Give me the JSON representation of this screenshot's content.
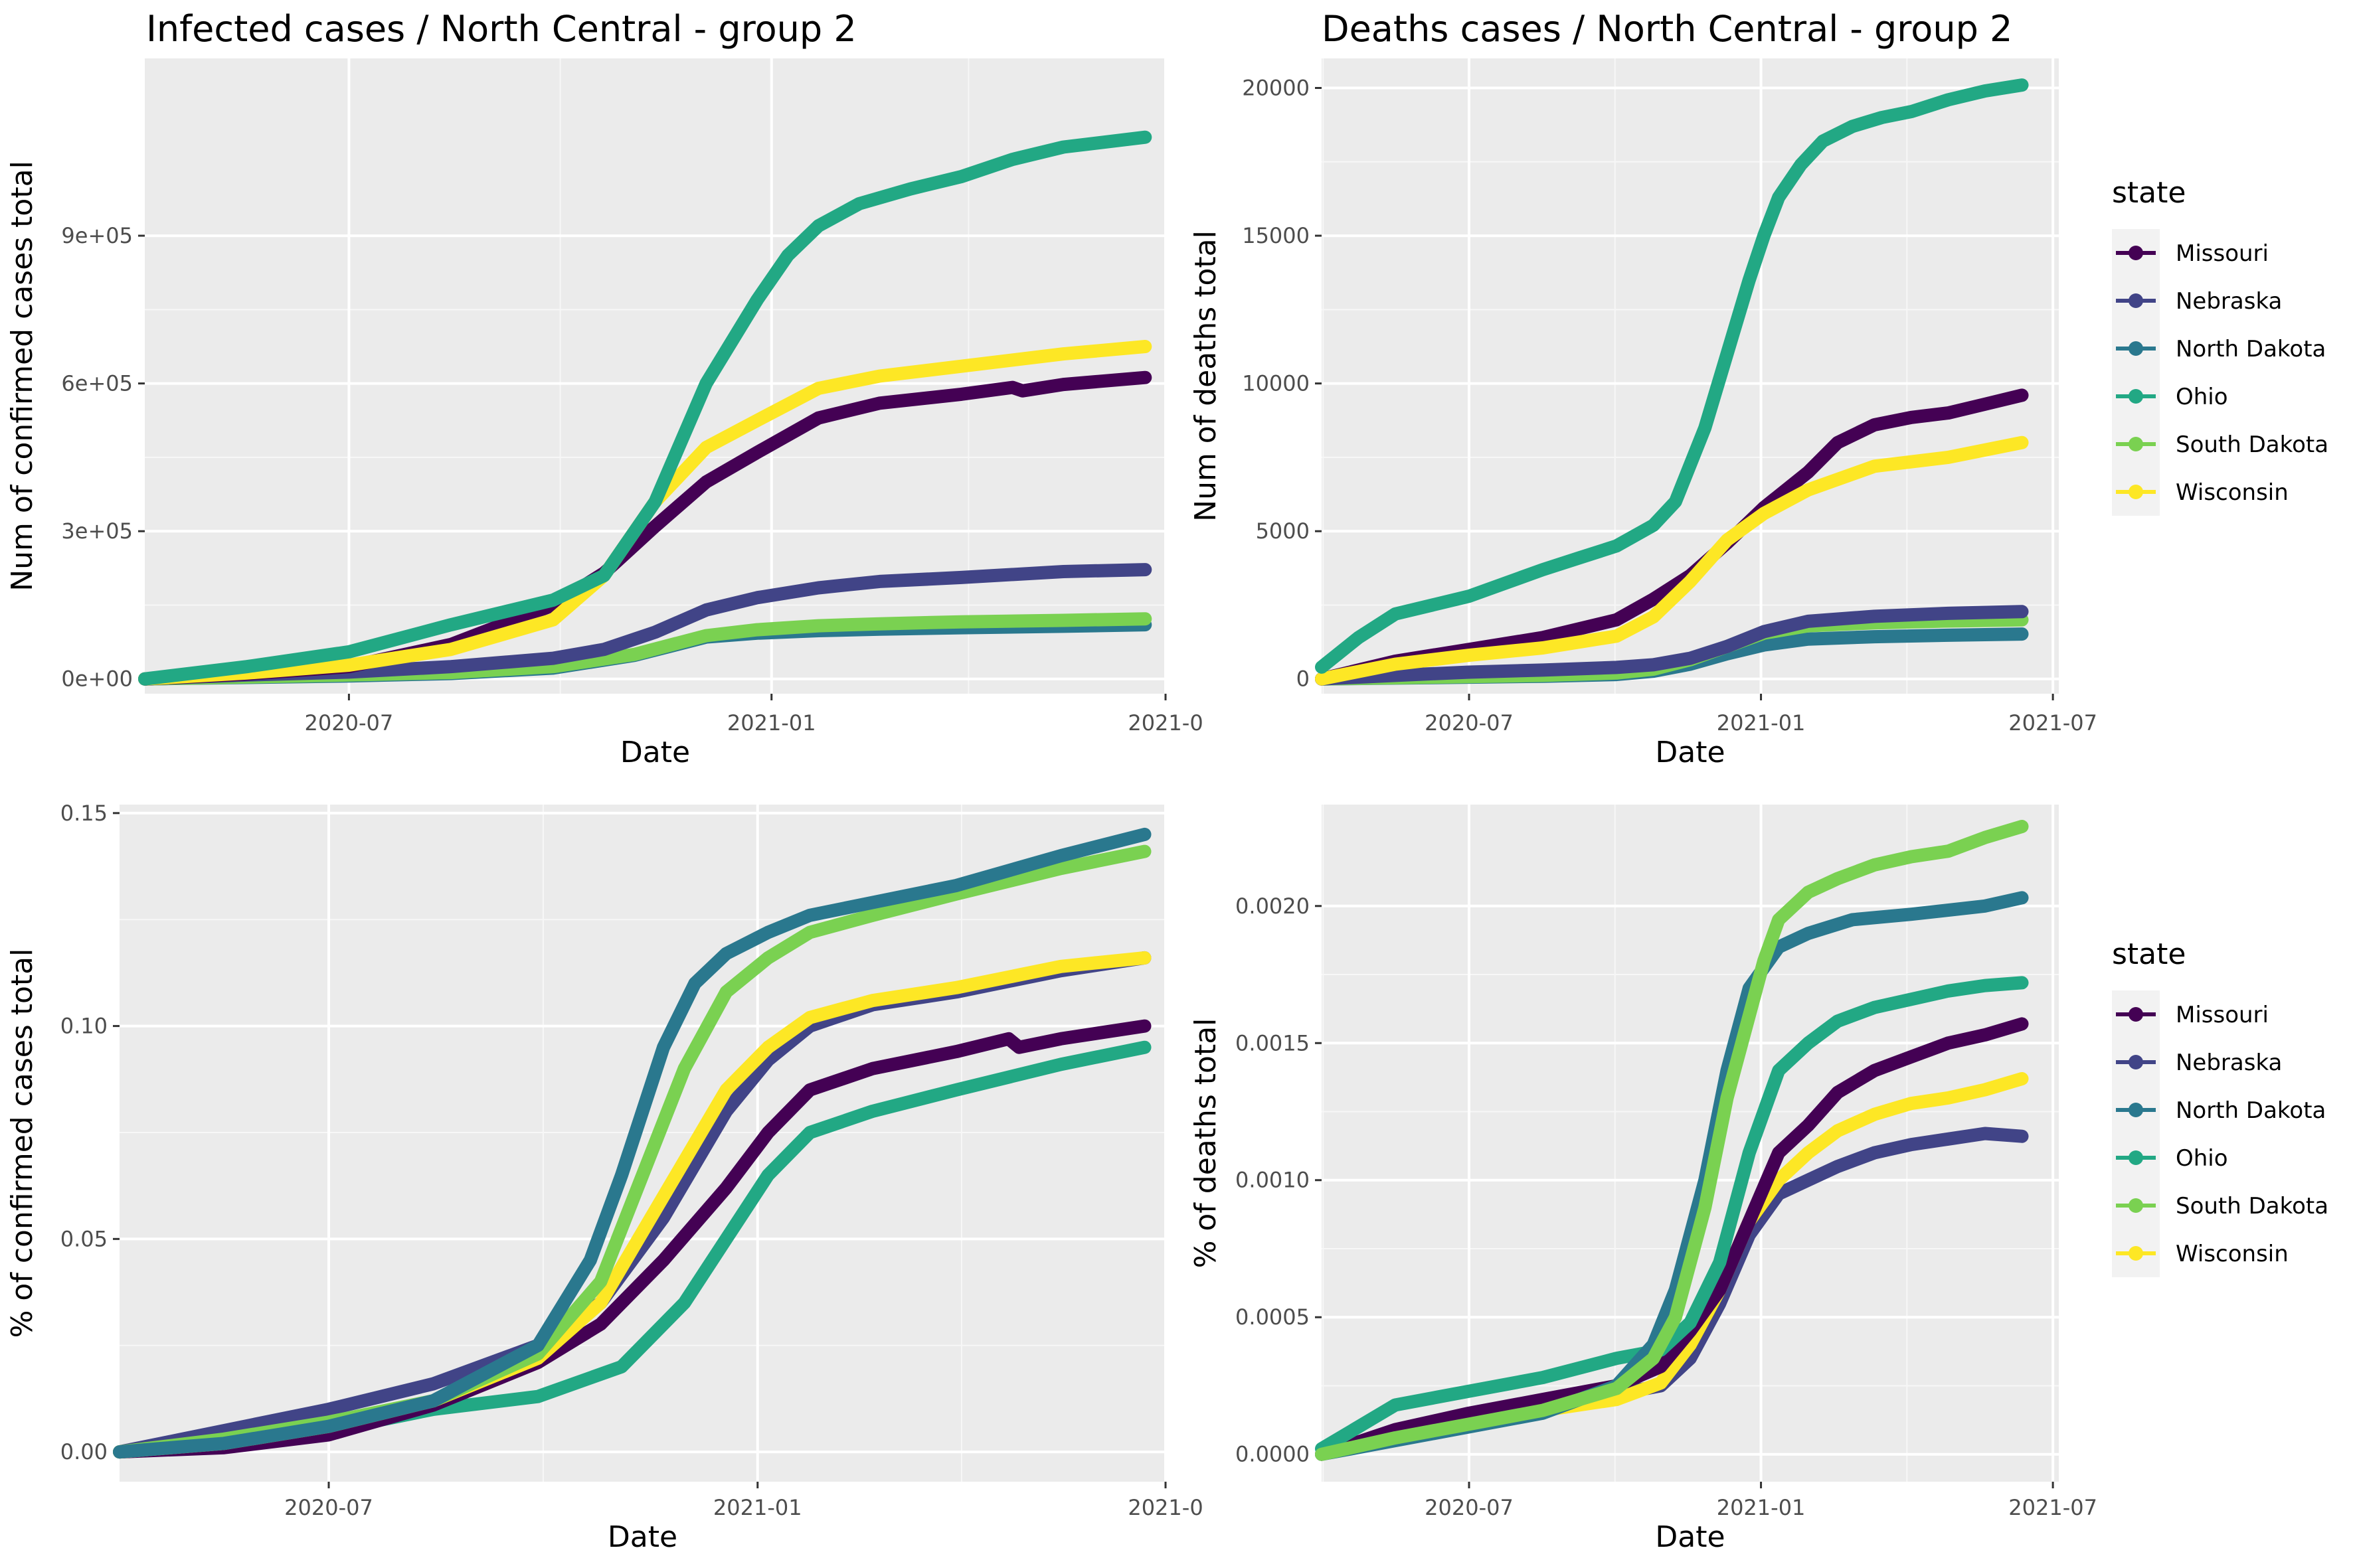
{
  "chart_data": [
    {
      "type": "line",
      "title": "Infected cases / North Central - group 2",
      "xlabel": "Date",
      "ylabel": "Num of confirmed cases total",
      "x_ticks": [
        "2020-07",
        "2021-01",
        "2021-0"
      ],
      "y_ticks": [
        "0e+00",
        "3e+05",
        "6e+05",
        "9e+05"
      ],
      "y_tick_values": [
        0,
        300000,
        600000,
        900000
      ],
      "xlim": [
        0,
        100
      ],
      "ylim": [
        -30000,
        1260000
      ],
      "x_tick_positions": [
        20.0,
        61.4,
        100.0
      ],
      "legend": false,
      "series": [
        {
          "name": "North Dakota",
          "x": [
            0,
            10,
            20,
            30,
            40,
            48,
            55,
            60,
            66,
            72,
            80,
            90,
            98
          ],
          "values": [
            0,
            3000,
            6000,
            11000,
            22000,
            48000,
            85000,
            93000,
            98000,
            101000,
            104000,
            107000,
            110000
          ]
        },
        {
          "name": "South Dakota",
          "x": [
            0,
            10,
            20,
            30,
            40,
            48,
            55,
            60,
            66,
            72,
            80,
            90,
            98
          ],
          "values": [
            0,
            4000,
            8000,
            13000,
            25000,
            50000,
            88000,
            100000,
            108000,
            112000,
            116000,
            119000,
            122000
          ]
        },
        {
          "name": "Nebraska",
          "x": [
            0,
            10,
            20,
            30,
            40,
            45,
            50,
            55,
            60,
            66,
            72,
            80,
            90,
            98
          ],
          "values": [
            0,
            8000,
            14000,
            25000,
            42000,
            60000,
            95000,
            140000,
            165000,
            185000,
            198000,
            206000,
            218000,
            222000
          ]
        },
        {
          "name": "Missouri",
          "x": [
            0,
            10,
            20,
            30,
            40,
            45,
            50,
            55,
            60,
            66,
            72,
            80,
            85,
            86,
            90,
            98
          ],
          "values": [
            0,
            10000,
            25000,
            70000,
            150000,
            215000,
            310000,
            400000,
            460000,
            530000,
            560000,
            578000,
            592000,
            585000,
            598000,
            612000
          ]
        },
        {
          "name": "Wisconsin",
          "x": [
            0,
            10,
            20,
            30,
            40,
            45,
            50,
            55,
            60,
            66,
            72,
            80,
            90,
            98
          ],
          "values": [
            0,
            12000,
            28000,
            60000,
            120000,
            210000,
            360000,
            470000,
            525000,
            590000,
            615000,
            635000,
            660000,
            675000
          ]
        },
        {
          "name": "Ohio",
          "x": [
            0,
            10,
            20,
            30,
            40,
            45,
            50,
            55,
            60,
            63,
            66,
            70,
            75,
            80,
            85,
            90,
            98
          ],
          "values": [
            0,
            25000,
            55000,
            110000,
            160000,
            210000,
            360000,
            600000,
            770000,
            860000,
            920000,
            965000,
            995000,
            1020000,
            1055000,
            1080000,
            1100000
          ]
        }
      ]
    },
    {
      "type": "line",
      "title": "Deaths cases / North Central - group 2",
      "xlabel": "Date",
      "ylabel": "Num of deaths total",
      "x_ticks": [
        "2020-07",
        "2021-01",
        "2021-07"
      ],
      "y_ticks": [
        "0",
        "5000",
        "10000",
        "15000",
        "20000"
      ],
      "y_tick_values": [
        0,
        5000,
        10000,
        15000,
        20000
      ],
      "xlim": [
        0,
        100
      ],
      "ylim": [
        -500,
        21000
      ],
      "x_tick_positions": [
        20.0,
        59.6,
        99.2
      ],
      "legend": true,
      "series": [
        {
          "name": "North Dakota",
          "x": [
            0,
            10,
            20,
            30,
            40,
            45,
            50,
            55,
            60,
            66,
            75,
            85,
            95
          ],
          "values": [
            0,
            30,
            60,
            90,
            150,
            260,
            500,
            850,
            1150,
            1350,
            1430,
            1480,
            1520
          ]
        },
        {
          "name": "South Dakota",
          "x": [
            0,
            10,
            20,
            30,
            40,
            45,
            50,
            55,
            60,
            66,
            75,
            85,
            95
          ],
          "values": [
            0,
            40,
            80,
            120,
            200,
            330,
            650,
            1100,
            1550,
            1800,
            1900,
            1960,
            2000
          ]
        },
        {
          "name": "Nebraska",
          "x": [
            0,
            10,
            20,
            30,
            40,
            45,
            50,
            55,
            60,
            66,
            75,
            85,
            95
          ],
          "values": [
            0,
            120,
            230,
            300,
            390,
            480,
            700,
            1100,
            1600,
            1950,
            2120,
            2220,
            2280
          ]
        },
        {
          "name": "Missouri",
          "x": [
            0,
            10,
            20,
            30,
            40,
            45,
            50,
            55,
            60,
            66,
            70,
            75,
            80,
            85,
            90,
            95
          ],
          "values": [
            0,
            600,
            1000,
            1400,
            2000,
            2700,
            3500,
            4600,
            5800,
            7000,
            8000,
            8600,
            8850,
            9000,
            9300,
            9600
          ]
        },
        {
          "name": "Wisconsin",
          "x": [
            0,
            10,
            20,
            30,
            40,
            45,
            50,
            55,
            60,
            66,
            75,
            85,
            95
          ],
          "values": [
            0,
            500,
            800,
            1050,
            1450,
            2100,
            3300,
            4700,
            5600,
            6400,
            7200,
            7500,
            8000
          ]
        },
        {
          "name": "Ohio",
          "x": [
            0,
            5,
            10,
            15,
            20,
            30,
            35,
            40,
            45,
            48,
            52,
            55,
            58,
            60,
            62,
            65,
            68,
            72,
            76,
            80,
            85,
            90,
            95
          ],
          "values": [
            400,
            1400,
            2200,
            2500,
            2800,
            3700,
            4100,
            4500,
            5200,
            6000,
            8500,
            11000,
            13500,
            15000,
            16300,
            17400,
            18200,
            18700,
            19000,
            19200,
            19600,
            19900,
            20100
          ]
        }
      ]
    },
    {
      "type": "line",
      "title": "",
      "xlabel": "Date",
      "ylabel": "% of confirmed cases total",
      "x_ticks": [
        "2020-07",
        "2021-01",
        "2021-0"
      ],
      "y_ticks": [
        "0.00",
        "0.05",
        "0.10",
        "0.15"
      ],
      "y_tick_values": [
        0,
        0.05,
        0.1,
        0.15
      ],
      "xlim": [
        0,
        100
      ],
      "ylim": [
        -0.007,
        0.152
      ],
      "x_tick_positions": [
        20.0,
        61.0,
        100.0
      ],
      "legend": false,
      "series": [
        {
          "name": "Ohio",
          "x": [
            0,
            10,
            20,
            30,
            40,
            48,
            54,
            58,
            62,
            66,
            72,
            80,
            90,
            98
          ],
          "values": [
            0,
            0.002,
            0.005,
            0.01,
            0.013,
            0.02,
            0.035,
            0.05,
            0.065,
            0.075,
            0.08,
            0.085,
            0.091,
            0.095
          ]
        },
        {
          "name": "Missouri",
          "x": [
            0,
            10,
            20,
            30,
            40,
            46,
            52,
            58,
            62,
            66,
            72,
            80,
            85,
            86,
            90,
            98
          ],
          "values": [
            0,
            0.001,
            0.004,
            0.011,
            0.021,
            0.03,
            0.045,
            0.062,
            0.075,
            0.085,
            0.09,
            0.094,
            0.097,
            0.095,
            0.097,
            0.1
          ]
        },
        {
          "name": "Nebraska",
          "x": [
            0,
            10,
            20,
            30,
            40,
            46,
            52,
            58,
            62,
            66,
            72,
            80,
            90,
            98
          ],
          "values": [
            0,
            0.005,
            0.01,
            0.016,
            0.025,
            0.035,
            0.055,
            0.08,
            0.092,
            0.1,
            0.105,
            0.108,
            0.113,
            0.116
          ]
        },
        {
          "name": "Wisconsin",
          "x": [
            0,
            10,
            20,
            30,
            40,
            46,
            52,
            58,
            62,
            66,
            72,
            80,
            90,
            98
          ],
          "values": [
            0,
            0.002,
            0.006,
            0.012,
            0.022,
            0.035,
            0.06,
            0.085,
            0.095,
            0.102,
            0.106,
            0.109,
            0.114,
            0.116
          ]
        },
        {
          "name": "South Dakota",
          "x": [
            0,
            10,
            20,
            30,
            40,
            46,
            50,
            54,
            58,
            62,
            66,
            72,
            80,
            90,
            98
          ],
          "values": [
            0,
            0.003,
            0.007,
            0.012,
            0.023,
            0.04,
            0.065,
            0.09,
            0.108,
            0.116,
            0.122,
            0.126,
            0.131,
            0.137,
            0.141
          ]
        },
        {
          "name": "North Dakota",
          "x": [
            0,
            10,
            20,
            30,
            40,
            45,
            48,
            52,
            55,
            58,
            62,
            66,
            72,
            80,
            90,
            98
          ],
          "values": [
            0,
            0.002,
            0.006,
            0.012,
            0.025,
            0.045,
            0.065,
            0.095,
            0.11,
            0.117,
            0.122,
            0.126,
            0.129,
            0.133,
            0.14,
            0.145
          ]
        }
      ]
    },
    {
      "type": "line",
      "title": "",
      "xlabel": "Date",
      "ylabel": "% of deaths total",
      "x_ticks": [
        "2020-07",
        "2021-01",
        "2021-07"
      ],
      "y_ticks": [
        "0.0000",
        "0.0005",
        "0.0010",
        "0.0015",
        "0.0020"
      ],
      "y_tick_values": [
        0,
        0.0005,
        0.001,
        0.0015,
        0.002
      ],
      "xlim": [
        0,
        100
      ],
      "ylim": [
        -0.0001,
        0.00237
      ],
      "x_tick_positions": [
        20.0,
        59.6,
        99.2
      ],
      "legend": true,
      "series": [
        {
          "name": "Nebraska",
          "x": [
            0,
            10,
            20,
            30,
            40,
            46,
            50,
            54,
            58,
            62,
            66,
            70,
            75,
            80,
            85,
            90,
            95
          ],
          "values": [
            0,
            8e-05,
            0.00013,
            0.00018,
            0.00022,
            0.00025,
            0.00035,
            0.00055,
            0.0008,
            0.00095,
            0.001,
            0.00105,
            0.0011,
            0.00113,
            0.00115,
            0.00117,
            0.00116
          ]
        },
        {
          "name": "Wisconsin",
          "x": [
            0,
            10,
            20,
            30,
            40,
            46,
            50,
            54,
            58,
            62,
            66,
            70,
            75,
            80,
            85,
            90,
            95
          ],
          "values": [
            0,
            8e-05,
            0.00012,
            0.00016,
            0.0002,
            0.00026,
            0.0004,
            0.0006,
            0.00085,
            0.001,
            0.0011,
            0.00118,
            0.00124,
            0.00128,
            0.0013,
            0.00133,
            0.00137
          ]
        },
        {
          "name": "Missouri",
          "x": [
            0,
            10,
            20,
            30,
            40,
            46,
            50,
            54,
            58,
            62,
            66,
            70,
            75,
            80,
            85,
            90,
            95
          ],
          "values": [
            0,
            9e-05,
            0.00015,
            0.0002,
            0.00025,
            0.00032,
            0.00045,
            0.0006,
            0.00085,
            0.0011,
            0.0012,
            0.00132,
            0.0014,
            0.00145,
            0.0015,
            0.00153,
            0.00157
          ]
        },
        {
          "name": "Ohio",
          "x": [
            0,
            10,
            20,
            30,
            40,
            46,
            50,
            54,
            58,
            62,
            66,
            70,
            75,
            80,
            85,
            90,
            95
          ],
          "values": [
            2e-05,
            0.00018,
            0.00023,
            0.00028,
            0.00035,
            0.00038,
            0.00048,
            0.0007,
            0.0011,
            0.0014,
            0.0015,
            0.00158,
            0.00163,
            0.00166,
            0.00169,
            0.00171,
            0.00172
          ]
        },
        {
          "name": "North Dakota",
          "x": [
            0,
            10,
            20,
            30,
            40,
            45,
            48,
            52,
            55,
            58,
            62,
            66,
            72,
            80,
            90,
            95
          ],
          "values": [
            0,
            5e-05,
            0.0001,
            0.00015,
            0.00025,
            0.0004,
            0.0006,
            0.001,
            0.0014,
            0.0017,
            0.00185,
            0.0019,
            0.00195,
            0.00197,
            0.002,
            0.00203
          ]
        },
        {
          "name": "South Dakota",
          "x": [
            0,
            10,
            20,
            30,
            40,
            45,
            48,
            52,
            55,
            58,
            60,
            62,
            66,
            70,
            75,
            80,
            85,
            90,
            95
          ],
          "values": [
            0,
            6e-05,
            0.00011,
            0.00016,
            0.00024,
            0.00035,
            0.0005,
            0.0009,
            0.0013,
            0.0016,
            0.0018,
            0.00195,
            0.00205,
            0.0021,
            0.00215,
            0.00218,
            0.0022,
            0.00225,
            0.00229
          ]
        }
      ]
    }
  ],
  "legend": {
    "title": "state",
    "items": [
      {
        "label": "Missouri",
        "color": "#440154"
      },
      {
        "label": "Nebraska",
        "color": "#414487"
      },
      {
        "label": "North Dakota",
        "color": "#2A788E"
      },
      {
        "label": "Ohio",
        "color": "#22A884"
      },
      {
        "label": "South Dakota",
        "color": "#7AD151"
      },
      {
        "label": "Wisconsin",
        "color": "#FDE725"
      }
    ]
  },
  "colors": {
    "Missouri": "#440154",
    "Nebraska": "#414487",
    "North Dakota": "#2A788E",
    "Ohio": "#22A884",
    "South Dakota": "#7AD151",
    "Wisconsin": "#FDE725"
  }
}
